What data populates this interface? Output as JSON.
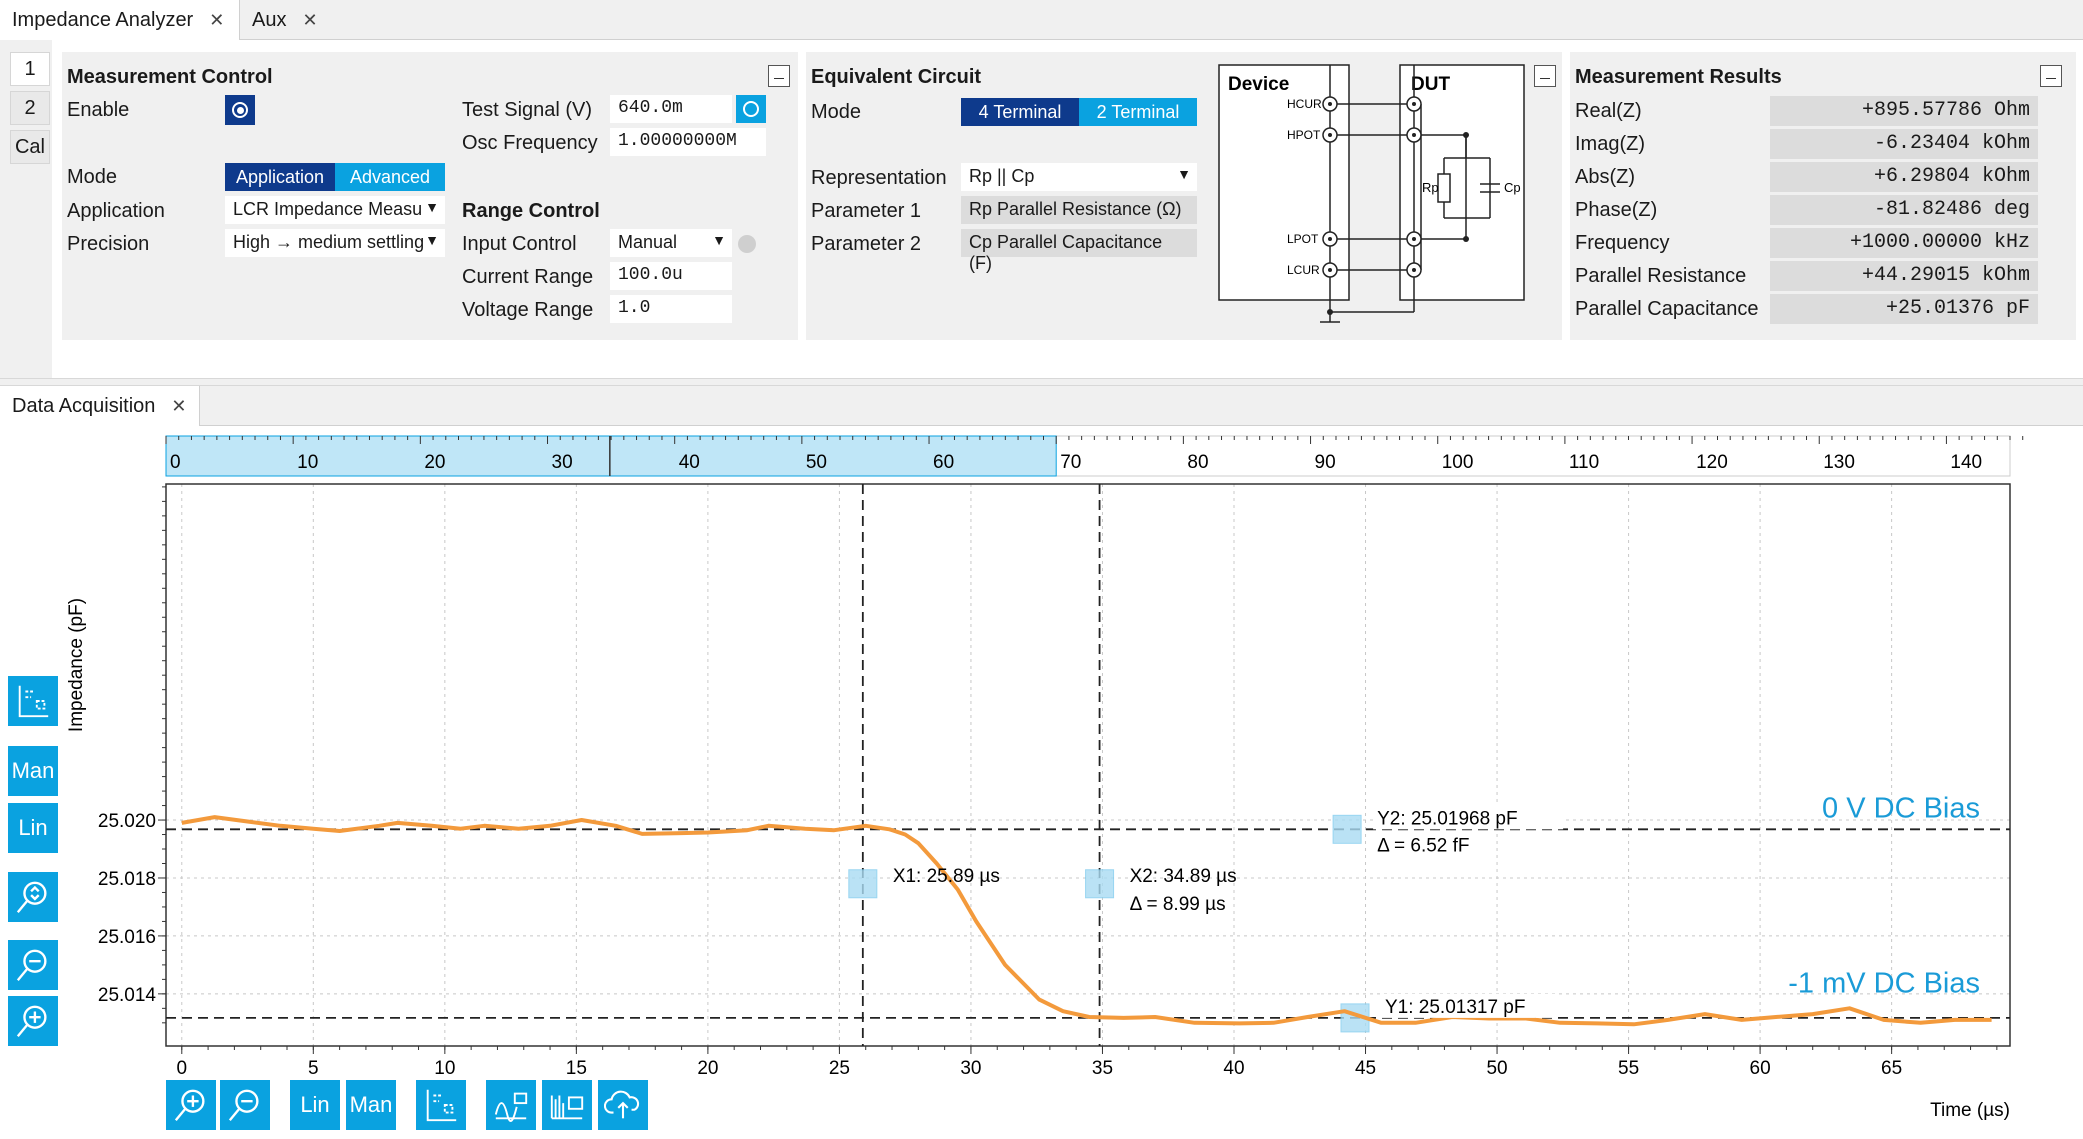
{
  "tabs": [
    {
      "label": "Impedance Analyzer",
      "active": true
    },
    {
      "label": "Aux",
      "active": false
    }
  ],
  "side_tabs": [
    "1",
    "2",
    "Cal"
  ],
  "measurement_control": {
    "title": "Measurement Control",
    "enable_label": "Enable",
    "mode_label": "Mode",
    "mode_options": [
      "Application",
      "Advanced"
    ],
    "application_label": "Application",
    "application_value": "LCR Impedance Measu",
    "precision_label": "Precision",
    "precision_value": "High → medium settling",
    "test_signal_label": "Test Signal (V)",
    "test_signal_value": "640.0m",
    "osc_freq_label": "Osc Frequency",
    "osc_freq_value": "1.00000000M",
    "range_title": "Range Control",
    "input_control_label": "Input Control",
    "input_control_value": "Manual",
    "current_range_label": "Current Range",
    "current_range_value": "100.0u",
    "voltage_range_label": "Voltage Range",
    "voltage_range_value": "1.0"
  },
  "equivalent_circuit": {
    "title": "Equivalent Circuit",
    "mode_label": "Mode",
    "mode_options": [
      "4 Terminal",
      "2 Terminal"
    ],
    "representation_label": "Representation",
    "representation_value": "Rp || Cp",
    "param1_label": "Parameter 1",
    "param1_value": "Rp Parallel Resistance (Ω)",
    "param2_label": "Parameter 2",
    "param2_value": "Cp Parallel Capacitance (F)",
    "diagram": {
      "device_label": "Device",
      "dut_label": "DUT",
      "hcur": "HCUR",
      "hpot": "HPOT",
      "lpot": "LPOT",
      "lcur": "LCUR",
      "rp": "Rp",
      "cp": "Cp"
    }
  },
  "measurement_results": {
    "title": "Measurement Results",
    "rows": [
      {
        "label": "Real(Z)",
        "value": "+895.57786  Ohm"
      },
      {
        "label": "Imag(Z)",
        "value": "-6.23404 kOhm"
      },
      {
        "label": "Abs(Z)",
        "value": "+6.29804 kOhm"
      },
      {
        "label": "Phase(Z)",
        "value": "-81.82486  deg"
      },
      {
        "label": "Frequency",
        "value": "+1000.00000 kHz"
      },
      {
        "label": "Parallel Resistance",
        "value": "+44.29015 kOhm"
      },
      {
        "label": "Parallel Capacitance",
        "value": "+25.01376 pF"
      }
    ]
  },
  "data_acquisition": {
    "tab_label": "Data Acquisition",
    "left_toolbar": [
      {
        "icon": "cursor-settings-icon",
        "label": ""
      },
      {
        "icon": "manual-scale-icon",
        "label": "Man"
      },
      {
        "icon": "linear-scale-icon",
        "label": "Lin"
      },
      {
        "icon": "zoom-fit-icon",
        "label": ""
      },
      {
        "icon": "zoom-out-icon",
        "label": ""
      },
      {
        "icon": "zoom-in-icon",
        "label": ""
      }
    ],
    "bottom_toolbar": [
      {
        "icon": "zoom-in-icon",
        "label": ""
      },
      {
        "icon": "zoom-out-icon",
        "label": ""
      },
      {
        "icon": "linear-scale-icon",
        "label": "Lin"
      },
      {
        "icon": "manual-scale-icon",
        "label": "Man"
      },
      {
        "icon": "cursor-settings-icon",
        "label": ""
      },
      {
        "icon": "math-icon",
        "label": ""
      },
      {
        "icon": "export-icon",
        "label": ""
      },
      {
        "icon": "cloud-upload-icon",
        "label": ""
      }
    ]
  },
  "chart_data": {
    "type": "line",
    "xlabel": "Time (µs)",
    "ylabel": "Impedance (pF)",
    "xlim": [
      -0.6,
      69.5
    ],
    "ylim": [
      25.0122,
      25.0316
    ],
    "x_ticks": [
      0,
      5,
      10,
      15,
      20,
      25,
      30,
      35,
      40,
      45,
      50,
      55,
      60,
      65
    ],
    "y_ticks": [
      25.014,
      25.016,
      25.018,
      25.02
    ],
    "y_tick_labels": [
      "25.014",
      "25.016",
      "25.018",
      "25.020"
    ],
    "grid": true,
    "overview_axis": {
      "range": [
        0,
        145
      ],
      "ticks": [
        0,
        10,
        20,
        30,
        40,
        50,
        60,
        70,
        80,
        90,
        100,
        110,
        120,
        130,
        140
      ],
      "selection": [
        0,
        70
      ],
      "marker": 34.9
    },
    "series": [
      {
        "color": "#f39a3c",
        "x": [
          0,
          1.25,
          2.5,
          3.75,
          5,
          6,
          7.5,
          8.2,
          9.5,
          10.6,
          11.5,
          12.8,
          14,
          15.2,
          16.5,
          17.5,
          19,
          20,
          21.5,
          22.3,
          23.7,
          24.8,
          26,
          26.9,
          27.5,
          28,
          28.7,
          29.5,
          30.2,
          31.3,
          32.6,
          33.5,
          34.5,
          35.8,
          37,
          38.5,
          40.2,
          41.5,
          42.8,
          44.2,
          45.6,
          46.9,
          48.3,
          49.7,
          51.1,
          52.4,
          53.8,
          55.2,
          56.5,
          57.9,
          59.3,
          60.6,
          62,
          63.4,
          64.7,
          66.1,
          67.4,
          68.8
        ],
        "y": [
          25.0199,
          25.0201,
          25.01995,
          25.0198,
          25.0197,
          25.01962,
          25.0198,
          25.0199,
          25.0198,
          25.0197,
          25.0198,
          25.0197,
          25.0198,
          25.02,
          25.0198,
          25.01952,
          25.01955,
          25.01957,
          25.01965,
          25.0198,
          25.0197,
          25.01965,
          25.0198,
          25.01968,
          25.0195,
          25.0192,
          25.0185,
          25.0176,
          25.0165,
          25.015,
          25.0138,
          25.0134,
          25.0132,
          25.01317,
          25.0132,
          25.013,
          25.01298,
          25.013,
          25.0132,
          25.0134,
          25.013,
          25.013,
          25.0132,
          25.01315,
          25.01315,
          25.013,
          25.01298,
          25.01295,
          25.0131,
          25.0133,
          25.0131,
          25.0132,
          25.0133,
          25.0135,
          25.0131,
          25.013,
          25.0131,
          25.0131
        ]
      }
    ],
    "cursors": {
      "x1": {
        "value": 25.89,
        "label": "X1: 25.89 µs"
      },
      "x2": {
        "value": 34.89,
        "label": "X2: 34.89 µs",
        "delta": "Δ = 8.99 µs"
      },
      "y1": {
        "value": 25.01317,
        "label": "Y1: 25.01317 pF"
      },
      "y2": {
        "value": 25.01968,
        "label": "Y2: 25.01968 pF",
        "delta": "Δ = 6.52 fF"
      }
    },
    "annotations": [
      {
        "text": "0 V DC Bias",
        "color": "#1a9bd7"
      },
      {
        "text": "-1 mV DC Bias",
        "color": "#1a9bd7"
      }
    ]
  },
  "colors": {
    "accent": "#0aa2e0",
    "accent_dark": "#0e3a8c",
    "trace": "#f39a3c",
    "overview_fill": "#bfe6f7"
  }
}
